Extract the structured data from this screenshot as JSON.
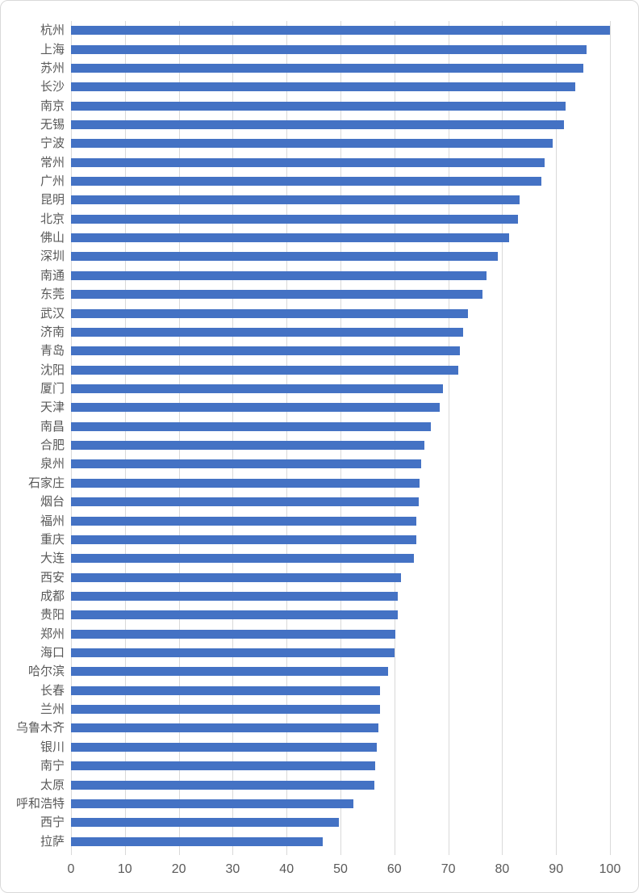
{
  "chart_data": {
    "type": "bar",
    "orientation": "horizontal",
    "title": "",
    "xlabel": "",
    "ylabel": "",
    "xlim": [
      0,
      100
    ],
    "x_ticks": [
      0,
      10,
      20,
      30,
      40,
      50,
      60,
      70,
      80,
      90,
      100
    ],
    "grid": true,
    "legend": false,
    "categories": [
      "杭州",
      "上海",
      "苏州",
      "长沙",
      "南京",
      "无锡",
      "宁波",
      "常州",
      "广州",
      "昆明",
      "北京",
      "佛山",
      "深圳",
      "南通",
      "东莞",
      "武汉",
      "济南",
      "青岛",
      "沈阳",
      "厦门",
      "天津",
      "南昌",
      "合肥",
      "泉州",
      "石家庄",
      "烟台",
      "福州",
      "重庆",
      "大连",
      "西安",
      "成都",
      "贵阳",
      "郑州",
      "海口",
      "哈尔滨",
      "长春",
      "兰州",
      "乌鲁木齐",
      "银川",
      "南宁",
      "太原",
      "呼和浩特",
      "西宁",
      "拉萨"
    ],
    "values": [
      100,
      95.7,
      95.1,
      93.5,
      91.8,
      91.5,
      89.4,
      87.8,
      87.3,
      83.2,
      83.0,
      81.3,
      79.2,
      77.1,
      76.4,
      73.7,
      72.8,
      72.1,
      71.9,
      69.0,
      68.4,
      66.8,
      65.5,
      64.9,
      64.6,
      64.5,
      64.0,
      64.0,
      63.6,
      61.2,
      60.6,
      60.6,
      60.2,
      60.1,
      58.9,
      57.4,
      57.4,
      57.0,
      56.7,
      56.4,
      56.3,
      52.4,
      49.7,
      46.7
    ],
    "colors": {
      "bar": "#4472C4",
      "gridline": "#D9D9D9",
      "axis_label": "#595959",
      "border": "#D9D9D9",
      "background": "#FFFFFF"
    }
  }
}
